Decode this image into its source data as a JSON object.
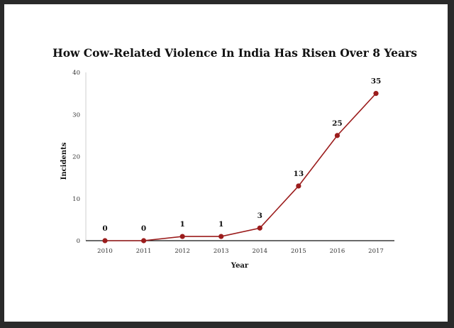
{
  "chart_data": {
    "type": "line",
    "title": "How Cow-Related Violence In India Has Risen Over 8 Years",
    "xlabel": "Year",
    "ylabel": "Incidents",
    "categories": [
      "2010",
      "2011",
      "2012",
      "2013",
      "2014",
      "2015",
      "2016",
      "2017"
    ],
    "series": [
      {
        "values": [
          0,
          0,
          1,
          1,
          3,
          13,
          25,
          35
        ],
        "color": "#9b1c1c"
      }
    ],
    "data_labels": [
      "0",
      "0",
      "1",
      "1",
      "3",
      "13",
      "25",
      "35"
    ],
    "ylim": [
      0,
      40
    ],
    "yticks": [
      "0",
      "10",
      "20",
      "30",
      "40"
    ],
    "grid": false,
    "legend": "none"
  }
}
